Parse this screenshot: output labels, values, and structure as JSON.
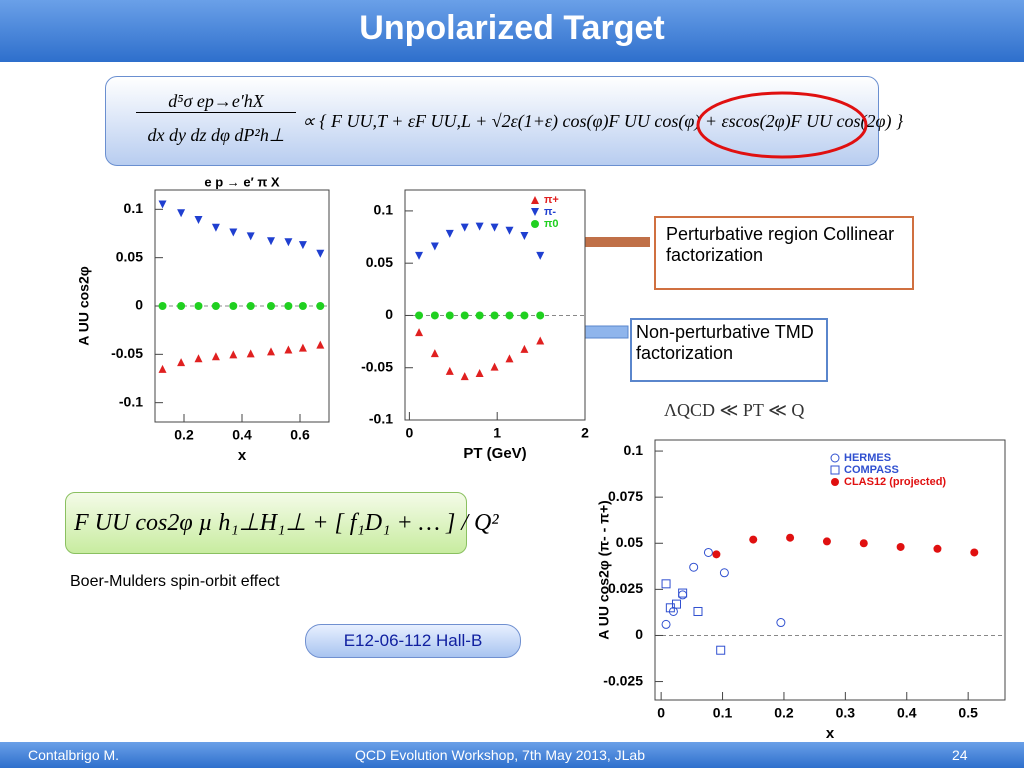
{
  "header": {
    "title": "Unpolarized Target"
  },
  "formula_top": {
    "numerator": "d⁵σ ep→e′hX",
    "denominator": "dx dy dz dφ dP²h⊥",
    "rhs": "∝ { F UU,T + εF UU,L + √2ε(1+ε) cos(φ)F UU cos(φ) + εscos(2φ)F UU cos(2φ) }"
  },
  "boxes": [
    "Perturbative region Collinear factorization",
    "Non-perturbative TMD factorization"
  ],
  "scale_relation": "ΛQCD ≪ PT ≪ Q",
  "formula_bottom": "F UU cos2φ  µ  h₁⊥H₁⊥ + [ f₁D₁ + … ] / Q²",
  "caption": "Boer-Mulders spin-orbit effect",
  "experiment": "E12-06-112  Hall-B",
  "footer": {
    "left": "Contalbrigo M.",
    "center": "QCD Evolution Workshop, 7th May 2013, JLab",
    "right": "24"
  },
  "chart_data": [
    {
      "type": "scatter",
      "title": "e p → e′ π  X",
      "xlabel": "x",
      "ylabel": "A UU cos2φ",
      "xlim": [
        0.1,
        0.7
      ],
      "xticks": [
        0.2,
        0.4,
        0.6
      ],
      "ylim": [
        -0.12,
        0.12
      ],
      "yticks": [
        0.1,
        0.05,
        0,
        -0.05,
        -0.1
      ],
      "series": [
        {
          "color": "#1f3fd0",
          "marker": "triangle-down",
          "x": [
            0.126,
            0.19,
            0.25,
            0.31,
            0.37,
            0.43,
            0.5,
            0.56,
            0.61,
            0.67
          ],
          "values": [
            0.105,
            0.096,
            0.089,
            0.081,
            0.076,
            0.072,
            0.067,
            0.066,
            0.063,
            0.054
          ]
        },
        {
          "color": "#e02020",
          "marker": "triangle-up",
          "x": [
            0.126,
            0.19,
            0.25,
            0.31,
            0.37,
            0.43,
            0.5,
            0.56,
            0.61,
            0.67
          ],
          "values": [
            -0.065,
            -0.058,
            -0.054,
            -0.052,
            -0.05,
            -0.049,
            -0.047,
            -0.045,
            -0.043,
            -0.04
          ]
        },
        {
          "color": "#20d020",
          "marker": "circle",
          "x": [
            0.126,
            0.19,
            0.25,
            0.31,
            0.37,
            0.43,
            0.5,
            0.56,
            0.61,
            0.67
          ],
          "values": [
            0,
            0,
            0,
            0,
            0,
            0,
            0,
            0,
            0,
            0
          ]
        }
      ]
    },
    {
      "type": "scatter",
      "xlabel": "PT (GeV)",
      "xlim": [
        -0.05,
        2
      ],
      "xticks": [
        0,
        1,
        2
      ],
      "ylim": [
        -0.1,
        0.12
      ],
      "yticks": [
        0.1,
        0.05,
        0,
        -0.05,
        -0.1
      ],
      "series": [
        {
          "name": "π+",
          "color": "#e02020",
          "marker": "triangle-up",
          "x": [
            0.11,
            0.29,
            0.46,
            0.63,
            0.8,
            0.97,
            1.14,
            1.31,
            1.49
          ],
          "values": [
            -0.016,
            -0.036,
            -0.053,
            -0.058,
            -0.055,
            -0.049,
            -0.041,
            -0.032,
            -0.024
          ]
        },
        {
          "name": "π-",
          "color": "#1f3fd0",
          "marker": "triangle-down",
          "x": [
            0.11,
            0.29,
            0.46,
            0.63,
            0.8,
            0.97,
            1.14,
            1.31,
            1.49
          ],
          "values": [
            0.057,
            0.066,
            0.078,
            0.084,
            0.085,
            0.084,
            0.081,
            0.076,
            0.057
          ]
        },
        {
          "name": "π0",
          "color": "#20d020",
          "marker": "circle",
          "x": [
            0.11,
            0.29,
            0.46,
            0.63,
            0.8,
            0.97,
            1.14,
            1.31,
            1.49
          ],
          "values": [
            0,
            0,
            0,
            0,
            0,
            0,
            0,
            0,
            0
          ]
        }
      ]
    },
    {
      "type": "scatter",
      "xlabel": "x",
      "ylabel": "A UU cos2φ (π- - π+)",
      "xlim": [
        -0.01,
        0.56
      ],
      "xticks": [
        0,
        0.1,
        0.2,
        0.3,
        0.4,
        0.5
      ],
      "ylim": [
        -0.035,
        0.106
      ],
      "yticks": [
        0.1,
        0.075,
        0.05,
        0.025,
        0,
        -0.025
      ],
      "series": [
        {
          "name": "HERMES",
          "color": "#3050d0",
          "marker": "circle-open",
          "x": [
            0.008,
            0.02,
            0.035,
            0.053,
            0.077,
            0.103,
            0.195
          ],
          "values": [
            0.006,
            0.013,
            0.022,
            0.037,
            0.045,
            0.034,
            0.007
          ]
        },
        {
          "name": "COMPASS",
          "color": "#3050d0",
          "marker": "square-open",
          "x": [
            0.008,
            0.015,
            0.025,
            0.035,
            0.06,
            0.097
          ],
          "values": [
            0.028,
            0.015,
            0.017,
            0.023,
            0.013,
            -0.008
          ]
        },
        {
          "name": "CLAS12 (projected)",
          "color": "#e01010",
          "marker": "circle",
          "x": [
            0.09,
            0.15,
            0.21,
            0.27,
            0.33,
            0.39,
            0.45,
            0.51
          ],
          "values": [
            0.044,
            0.052,
            0.053,
            0.051,
            0.05,
            0.048,
            0.047,
            0.045
          ]
        }
      ]
    }
  ]
}
